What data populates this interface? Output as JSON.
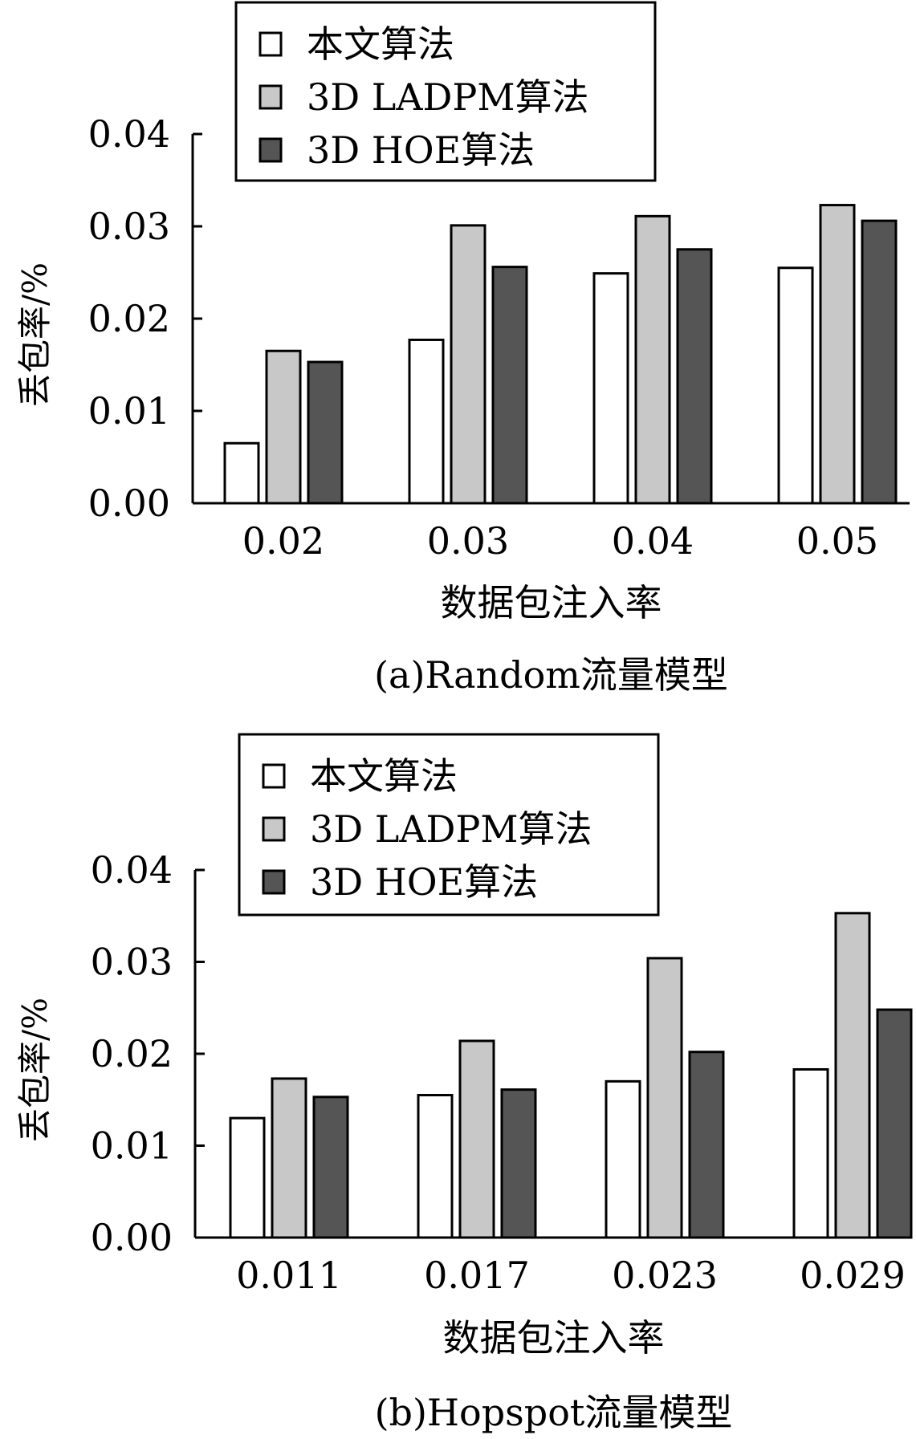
{
  "chart_data": [
    {
      "type": "bar",
      "caption": "(a)Random流量模型",
      "xlabel": "数据包注入率",
      "ylabel": "丢包率/%",
      "categories": [
        "0.02",
        "0.03",
        "0.04",
        "0.05"
      ],
      "ylim": [
        0,
        0.04
      ],
      "yticks": [
        "0.00",
        "0.01",
        "0.02",
        "0.03",
        "0.04"
      ],
      "legend_position": "top-left",
      "grid": false,
      "series": [
        {
          "name": "本文算法",
          "color": "#ffffff",
          "values": [
            0.0065,
            0.0177,
            0.0249,
            0.0255
          ]
        },
        {
          "name": "3D LADPM算法",
          "color": "#c8c8c8",
          "values": [
            0.0165,
            0.0301,
            0.0311,
            0.0323
          ]
        },
        {
          "name": "3D HOE算法",
          "color": "#555555",
          "values": [
            0.0153,
            0.0256,
            0.0275,
            0.0306
          ]
        }
      ]
    },
    {
      "type": "bar",
      "caption": "(b)Hopspot流量模型",
      "xlabel": "数据包注入率",
      "ylabel": "丢包率/%",
      "categories": [
        "0.011",
        "0.017",
        "0.023",
        "0.029"
      ],
      "ylim": [
        0,
        0.04
      ],
      "yticks": [
        "0.00",
        "0.01",
        "0.02",
        "0.03",
        "0.04"
      ],
      "legend_position": "top-left",
      "grid": false,
      "series": [
        {
          "name": "本文算法",
          "color": "#ffffff",
          "values": [
            0.013,
            0.0155,
            0.017,
            0.0183
          ]
        },
        {
          "name": "3D LADPM算法",
          "color": "#c8c8c8",
          "values": [
            0.0173,
            0.0214,
            0.0304,
            0.0353
          ]
        },
        {
          "name": "3D HOE算法",
          "color": "#555555",
          "values": [
            0.0153,
            0.0161,
            0.0202,
            0.0248
          ]
        }
      ]
    }
  ]
}
